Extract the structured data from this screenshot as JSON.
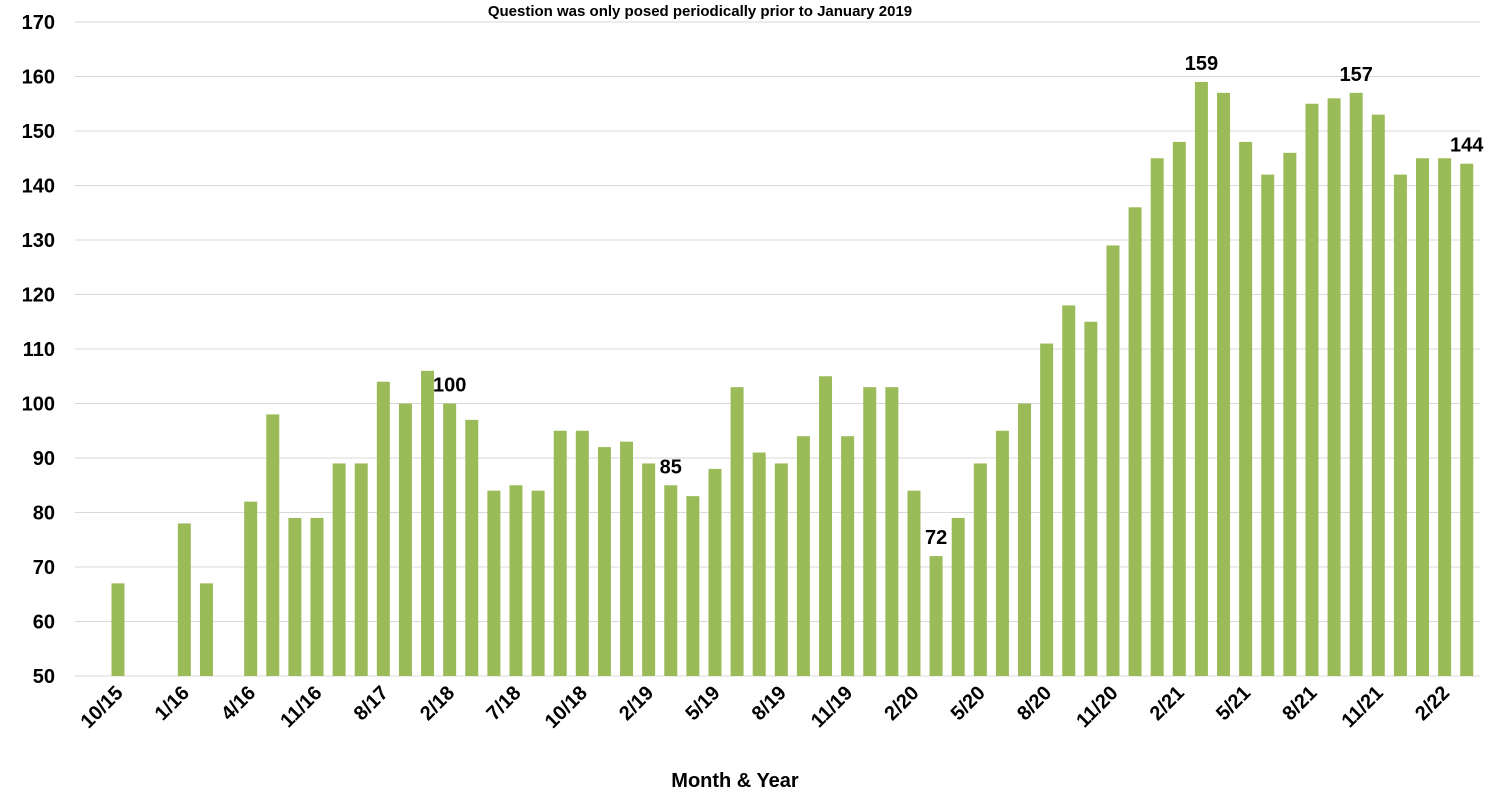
{
  "chart_data": {
    "type": "bar",
    "subtitle": "Question was only posed periodically prior to January 2019",
    "x_label": "Month & Year",
    "categories": [
      "10/15",
      null,
      null,
      "1/16",
      null,
      null,
      "4/16",
      null,
      null,
      "11/16",
      null,
      null,
      "8/17",
      null,
      null,
      "2/18",
      null,
      null,
      "7/18",
      null,
      null,
      "10/18",
      null,
      null,
      "2/19",
      null,
      null,
      "5/19",
      null,
      null,
      "8/19",
      null,
      null,
      "11/19",
      null,
      null,
      "2/20",
      null,
      null,
      "5/20",
      null,
      null,
      "8/20",
      null,
      null,
      "11/20",
      null,
      null,
      "2/21",
      null,
      null,
      "5/21",
      null,
      null,
      "8/21",
      null,
      null,
      "11/21",
      null,
      null,
      "2/22",
      null
    ],
    "values": [
      67,
      null,
      null,
      78,
      67,
      null,
      82,
      98,
      79,
      79,
      89,
      89,
      104,
      100,
      106,
      100,
      97,
      84,
      85,
      84,
      95,
      95,
      92,
      93,
      89,
      85,
      83,
      88,
      103,
      91,
      89,
      94,
      105,
      94,
      103,
      103,
      84,
      72,
      79,
      89,
      95,
      100,
      111,
      118,
      115,
      129,
      136,
      145,
      148,
      159,
      157,
      148,
      142,
      146,
      155,
      156,
      157,
      153,
      142,
      145,
      145,
      144
    ],
    "labeled_bars": [
      15,
      25,
      37,
      49,
      56,
      61
    ],
    "color": "#9bbb59",
    "ylim": [
      50,
      170
    ],
    "yticks": [
      50,
      60,
      70,
      80,
      90,
      100,
      110,
      120,
      130,
      140,
      150,
      160,
      170
    ],
    "grid": true
  }
}
